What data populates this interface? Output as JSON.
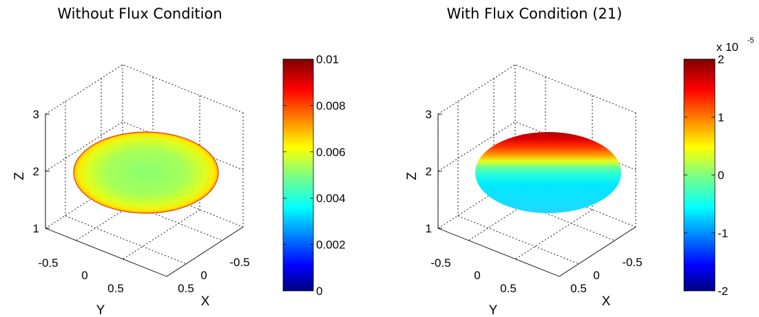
{
  "chart_data": [
    {
      "type": "surface",
      "title": "Without Flux Condition",
      "xlabel": "X",
      "ylabel": "Y",
      "zlabel": "Z",
      "x_ticks": [
        "-0.5",
        "0",
        "0.5"
      ],
      "y_ticks": [
        "-0.5",
        "0",
        "0.5"
      ],
      "z_ticks": [
        "1",
        "2",
        "3"
      ],
      "zlim": [
        1,
        3
      ],
      "shape": "ellipsoid",
      "coloring": "near-uniform, center ~0.0055 rising to ~0.008 at rim",
      "center_value": 0.0055,
      "rim_value": 0.008,
      "colormap": "jet",
      "colorbar": {
        "min": 0,
        "max": 0.01,
        "ticks": [
          "0",
          "0.002",
          "0.004",
          "0.006",
          "0.008",
          "0.01"
        ],
        "multiplier": ""
      },
      "grid": true
    },
    {
      "type": "surface",
      "title": "With Flux Condition (21)",
      "xlabel": "X",
      "ylabel": "Y",
      "zlabel": "Z",
      "x_ticks": [
        "-0.5",
        "0",
        "0.5"
      ],
      "y_ticks": [
        "-0.5",
        "0",
        "0.5"
      ],
      "z_ticks": [
        "1",
        "2",
        "3"
      ],
      "zlim": [
        1,
        3
      ],
      "shape": "ellipsoid",
      "coloring": "vertical gradient, top ~2e-5 to bottom ~-0.5e-5",
      "top_value": 2,
      "bottom_value": -0.5,
      "colormap": "jet",
      "colorbar": {
        "min": -2,
        "max": 2,
        "ticks": [
          "-2",
          "-1",
          "0",
          "1",
          "2"
        ],
        "multiplier_base": "x 10",
        "multiplier_exp": "-5"
      },
      "grid": true
    }
  ],
  "colors": {
    "jet_stops": [
      "#00007f",
      "#0000ff",
      "#007fff",
      "#00ffff",
      "#7fff7f",
      "#ffff00",
      "#ff7f00",
      "#ff0000",
      "#7f0000"
    ]
  }
}
